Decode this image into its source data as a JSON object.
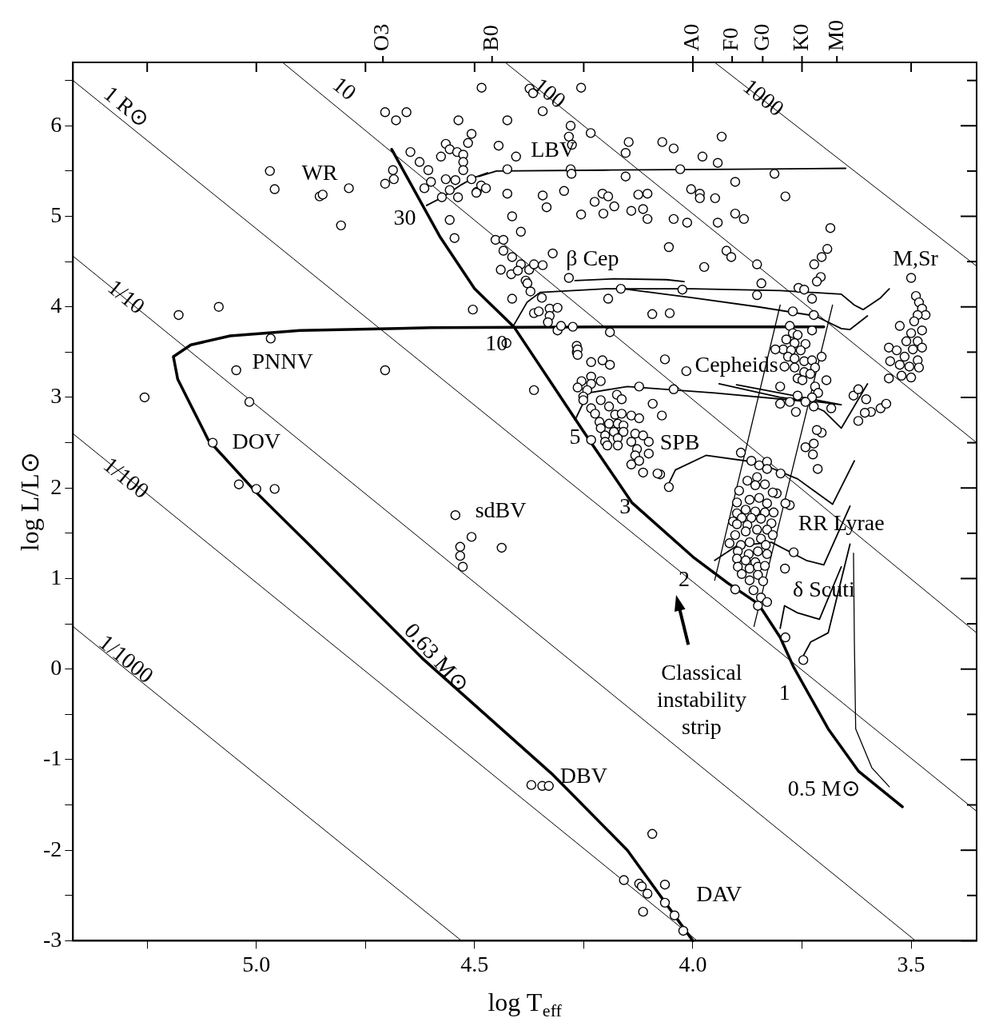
{
  "chart_data": {
    "type": "scatter",
    "xlabel": "log T$_{eff}$",
    "ylabel": "log L/L⊙",
    "xlim": [
      5.42,
      3.35
    ],
    "xticks": [
      {
        "value": 5.25,
        "label": null
      },
      {
        "value": 5,
        "label": "5.0"
      },
      {
        "value": 4.75,
        "label": null
      },
      {
        "value": 4.5,
        "label": "4.5"
      },
      {
        "value": 4.25,
        "label": null
      },
      {
        "value": 4,
        "label": "4.0"
      },
      {
        "value": 3.75,
        "label": null
      },
      {
        "value": 3.5,
        "label": "3.5"
      }
    ],
    "ylim": [
      -3,
      6.7
    ],
    "yticks": [
      -3,
      {
        "value": -2.5,
        "label": null
      },
      -2,
      {
        "value": -1.5,
        "label": null
      },
      -1,
      {
        "value": -0.5,
        "label": null
      },
      0,
      {
        "value": 0.5,
        "label": null
      },
      1,
      {
        "value": 1.5,
        "label": null
      },
      2,
      {
        "value": 2.5,
        "label": null
      },
      3,
      {
        "value": 3.5,
        "label": null
      },
      4,
      {
        "value": 4.5,
        "label": null
      },
      5,
      {
        "value": 5.5,
        "label": null
      },
      6,
      {
        "value": 6.5,
        "label": null
      }
    ],
    "series": [
      {
        "color": "#000000",
        "marker": "circle",
        "x": [
          4.705,
          4.68,
          4.656,
          4.537,
          4.507,
          4.515,
          4.566,
          4.557,
          4.54,
          4.526,
          4.577,
          4.526,
          4.526,
          4.647,
          4.626,
          4.606,
          4.6,
          4.615,
          4.566,
          4.544,
          4.507,
          4.557,
          4.575,
          4.538,
          4.495,
          4.687,
          4.685,
          4.705,
          4.557,
          4.546,
          4.484,
          4.969,
          4.958,
          4.855,
          4.848,
          4.788,
          4.806,
          5.086,
          5.178,
          4.967,
          5.046,
          4.705,
          5.256,
          5.016,
          4.504,
          5.1,
          5.04,
          5.0,
          4.958,
          4.544,
          4.507,
          4.533,
          4.533,
          4.527,
          4.438,
          4.37,
          4.345,
          4.33,
          4.158,
          4.123,
          4.117,
          4.104,
          4.114,
          4.064,
          4.064,
          4.042,
          4.022,
          4.093,
          4.055,
          4.075,
          3.903,
          3.788,
          3.747,
          3.769,
          3.789,
          3.714,
          3.725,
          3.742,
          3.705,
          3.778,
          3.808,
          4.374,
          4.366,
          4.256,
          4.344,
          4.425,
          4.28,
          4.284,
          4.277,
          4.234,
          4.445,
          4.405,
          4.425,
          4.28,
          4.278,
          4.147,
          4.154,
          4.154,
          4.07,
          4.044,
          4.029,
          3.978,
          3.943,
          3.934,
          3.813,
          4.485,
          4.474,
          4.496,
          4.425,
          4.344,
          4.335,
          4.295,
          4.414,
          4.394,
          4.256,
          4.225,
          4.207,
          4.194,
          4.18,
          4.205,
          4.141,
          4.125,
          4.114,
          4.104,
          4.104,
          4.044,
          4.013,
          4.004,
          3.984,
          3.984,
          3.949,
          3.943,
          3.903,
          3.903,
          3.883,
          3.788,
          3.685,
          4.055,
          3.923,
          3.912,
          3.853,
          3.974,
          3.692,
          3.705,
          3.722,
          3.707,
          3.716,
          3.843,
          3.758,
          3.745,
          3.727,
          3.853,
          4.024,
          4.165,
          4.194,
          4.093,
          4.053,
          3.771,
          3.723,
          3.727,
          3.5,
          4.452,
          4.434,
          4.434,
          4.414,
          4.394,
          4.375,
          4.364,
          4.344,
          4.321,
          4.284,
          4.44,
          4.416,
          4.401,
          4.383,
          4.379,
          4.372,
          4.346,
          4.414,
          4.328,
          4.31,
          4.364,
          4.353,
          4.328,
          4.332,
          4.31,
          4.275,
          4.302,
          4.19,
          4.427,
          4.266,
          4.266,
          4.233,
          4.207,
          4.19,
          4.064,
          4.364,
          4.015,
          4.264,
          4.264,
          4.123,
          4.044,
          4.092,
          4.071,
          4.255,
          4.233,
          4.211,
          4.264,
          4.233,
          4.242,
          4.251,
          4.251,
          4.211,
          4.233,
          4.224,
          4.192,
          4.174,
          4.163,
          4.178,
          4.163,
          4.141,
          4.123,
          4.214,
          4.192,
          4.172,
          4.159,
          4.211,
          4.181,
          4.159,
          4.132,
          4.114,
          4.201,
          4.172,
          4.233,
          4.201,
          4.141,
          4.101,
          4.196,
          4.172,
          4.128,
          4.132,
          4.101,
          4.141,
          4.123,
          4.114,
          4.081,
          3.778,
          3.771,
          3.76,
          3.786,
          3.767,
          3.742,
          3.793,
          3.811,
          3.775,
          3.753,
          3.782,
          3.767,
          3.745,
          3.727,
          3.705,
          3.79,
          3.767,
          3.745,
          3.72,
          3.731,
          3.76,
          3.749,
          3.694,
          3.8,
          3.72,
          3.713,
          3.76,
          3.727,
          3.8,
          3.778,
          3.742,
          3.723,
          3.683,
          3.764,
          3.716,
          3.632,
          3.621,
          3.603,
          3.592,
          3.606,
          3.621,
          3.57,
          3.557,
          3.489,
          3.482,
          3.475,
          3.467,
          3.485,
          3.493,
          3.475,
          3.526,
          3.5,
          3.511,
          3.485,
          3.551,
          3.533,
          3.496,
          3.475,
          3.515,
          3.485,
          3.548,
          3.526,
          3.504,
          3.482,
          3.551,
          3.522,
          3.5,
          3.89,
          3.866,
          3.848,
          3.83,
          3.83,
          3.799,
          3.875,
          3.853,
          3.835,
          3.857,
          3.817,
          3.894,
          3.87,
          3.848,
          3.83,
          3.899,
          3.788,
          3.879,
          3.857,
          3.835,
          3.815,
          3.899,
          3.888,
          3.866,
          3.844,
          3.82,
          3.908,
          3.899,
          3.875,
          3.853,
          3.83,
          3.817,
          3.903,
          3.879,
          3.844,
          3.916,
          3.89,
          3.87,
          3.833,
          3.897,
          3.872,
          3.851,
          3.83,
          3.899,
          3.879,
          3.857,
          3.897,
          3.87,
          3.851,
          3.835,
          3.888,
          3.87,
          3.851,
          3.839,
          3.861,
          3.844,
          3.83,
          3.851,
          3.723
        ],
        "values": [
          6.15,
          6.06,
          6.15,
          6.06,
          5.91,
          5.81,
          5.8,
          5.74,
          5.71,
          5.68,
          5.66,
          5.6,
          5.51,
          5.71,
          5.6,
          5.51,
          5.38,
          5.31,
          5.41,
          5.4,
          5.41,
          5.29,
          5.21,
          5.21,
          5.27,
          5.51,
          5.41,
          5.36,
          4.96,
          4.76,
          6.42,
          5.5,
          5.3,
          5.22,
          5.24,
          5.31,
          4.9,
          4.0,
          3.91,
          3.65,
          3.3,
          3.3,
          3.0,
          2.95,
          3.97,
          2.5,
          2.04,
          1.99,
          1.99,
          1.7,
          1.46,
          1.35,
          1.25,
          1.13,
          1.34,
          -1.28,
          -1.29,
          -1.29,
          -2.33,
          -2.37,
          -2.4,
          -2.48,
          -2.68,
          -2.38,
          -2.58,
          -2.72,
          -2.89,
          -1.82,
          2.01,
          2.15,
          0.88,
          0.35,
          0.1,
          1.29,
          1.11,
          2.21,
          2.37,
          2.45,
          2.61,
          1.81,
          1.94,
          6.41,
          6.36,
          6.42,
          6.16,
          6.06,
          6.0,
          5.88,
          5.79,
          5.92,
          5.78,
          5.66,
          5.52,
          5.52,
          5.47,
          5.82,
          5.7,
          5.44,
          5.82,
          5.75,
          5.52,
          5.66,
          5.59,
          5.88,
          5.47,
          5.34,
          5.31,
          5.26,
          5.25,
          5.23,
          5.1,
          5.28,
          5.0,
          4.83,
          5.02,
          5.16,
          5.25,
          5.22,
          5.11,
          5.03,
          5.06,
          5.24,
          5.08,
          5.25,
          4.97,
          4.97,
          4.93,
          5.3,
          5.25,
          5.2,
          5.2,
          4.93,
          5.38,
          5.03,
          4.97,
          5.22,
          4.87,
          4.66,
          4.62,
          4.55,
          4.47,
          4.44,
          4.64,
          4.55,
          4.47,
          4.33,
          4.28,
          4.26,
          4.21,
          4.19,
          4.09,
          4.13,
          4.19,
          4.2,
          4.09,
          3.92,
          3.93,
          3.95,
          3.91,
          3.74,
          4.32,
          4.74,
          4.74,
          4.62,
          4.55,
          4.47,
          4.41,
          4.47,
          4.46,
          4.59,
          4.32,
          4.41,
          4.36,
          4.4,
          4.29,
          4.26,
          4.17,
          4.1,
          4.09,
          3.98,
          3.99,
          3.93,
          3.95,
          3.9,
          3.83,
          3.74,
          3.78,
          3.79,
          3.72,
          3.6,
          3.57,
          3.5,
          3.39,
          3.41,
          3.36,
          3.42,
          3.08,
          3.29,
          3.53,
          3.47,
          3.12,
          3.09,
          2.93,
          2.8,
          3.18,
          3.23,
          3.18,
          3.11,
          3.15,
          3.08,
          3.01,
          2.97,
          2.97,
          2.88,
          2.82,
          2.9,
          3.03,
          2.98,
          2.81,
          2.82,
          2.8,
          2.77,
          2.73,
          2.71,
          2.71,
          2.69,
          2.66,
          2.62,
          2.62,
          2.6,
          2.58,
          2.58,
          2.55,
          2.53,
          2.51,
          2.51,
          2.51,
          2.47,
          2.47,
          2.43,
          2.36,
          2.38,
          2.26,
          2.3,
          2.17,
          2.16,
          3.79,
          3.71,
          3.69,
          3.64,
          3.6,
          3.59,
          3.53,
          3.53,
          3.52,
          3.52,
          3.45,
          3.43,
          3.4,
          3.41,
          3.45,
          3.34,
          3.33,
          3.28,
          3.33,
          3.26,
          3.21,
          3.19,
          3.19,
          3.12,
          3.12,
          3.05,
          3.02,
          3.0,
          2.93,
          2.95,
          2.95,
          2.9,
          2.88,
          2.84,
          2.64,
          3.02,
          3.09,
          2.98,
          2.84,
          2.83,
          2.74,
          2.88,
          2.93,
          4.12,
          4.05,
          3.98,
          3.91,
          3.91,
          3.84,
          3.74,
          3.79,
          3.71,
          3.62,
          3.62,
          3.55,
          3.52,
          3.53,
          3.55,
          3.45,
          3.41,
          3.4,
          3.36,
          3.34,
          3.33,
          3.21,
          3.24,
          3.22,
          2.39,
          2.3,
          2.25,
          2.29,
          2.21,
          2.16,
          2.08,
          2.12,
          2.04,
          2.03,
          1.95,
          1.97,
          1.87,
          1.89,
          1.83,
          1.84,
          1.83,
          1.76,
          1.74,
          1.73,
          1.73,
          1.72,
          1.67,
          1.67,
          1.66,
          1.61,
          1.63,
          1.6,
          1.59,
          1.54,
          1.54,
          1.48,
          1.48,
          1.52,
          1.44,
          1.39,
          1.37,
          1.4,
          1.37,
          1.3,
          1.27,
          1.3,
          1.27,
          1.22,
          1.2,
          1.18,
          1.13,
          1.11,
          1.13,
          1.14,
          1.05,
          0.98,
          1.04,
          0.97,
          0.87,
          0.79,
          0.74,
          0.7,
          2.49
        ]
      },
      {
        "type": "line",
        "color": "#000000",
        "x": [
          5.42,
          4.53
        ],
        "values": [
          0.47,
          -3
        ]
      },
      {
        "type": "line",
        "color": "#000000",
        "x": [
          5.42,
          3.99
        ],
        "values": [
          2.6,
          -3
        ]
      },
      {
        "type": "line",
        "color": "#000000",
        "x": [
          5.42,
          3.49
        ],
        "values": [
          4.56,
          -3
        ]
      },
      {
        "type": "line",
        "color": "#000000",
        "x": [
          5.42,
          3.35
        ],
        "values": [
          6.5,
          -1.57
        ]
      },
      {
        "type": "line",
        "color": "#000000",
        "x": [
          4.94,
          3.35
        ],
        "values": [
          6.7,
          0.4
        ]
      },
      {
        "type": "line",
        "color": "#000000",
        "x": [
          4.43,
          3.35
        ],
        "values": [
          6.7,
          2.5
        ]
      },
      {
        "type": "line",
        "color": "#000000",
        "x": [
          3.95,
          3.35
        ],
        "values": [
          6.7,
          4.45
        ]
      },
      {
        "type": "line",
        "color": "#000000",
        "x": [
          4.69,
          4.58,
          4.5,
          4.41,
          4.33,
          4.25,
          4.14,
          4.0,
          3.92,
          3.85,
          3.8,
          3.77,
          3.69,
          3.62,
          3.52
        ],
        "values": [
          5.74,
          4.78,
          4.2,
          3.78,
          3.2,
          2.62,
          1.84,
          1.24,
          0.95,
          0.72,
          0.35,
          0.03,
          -0.66,
          -1.13,
          -1.52
        ]
      },
      {
        "type": "line",
        "color": "#000000",
        "x": [
          3.7,
          4.2,
          4.6,
          4.9,
          5.06,
          5.15,
          5.19,
          5.18,
          5.11,
          5.0,
          4.87,
          4.62,
          4.32,
          4.15,
          4.0
        ],
        "values": [
          3.78,
          3.78,
          3.77,
          3.74,
          3.68,
          3.58,
          3.45,
          3.2,
          2.53,
          1.95,
          1.33,
          0.12,
          -1.17,
          -2.0,
          -3.0
        ]
      },
      {
        "type": "line",
        "color": "#000000",
        "x": [
          4.61,
          4.57,
          4.53,
          4.5,
          4.47,
          4.49,
          4.45,
          4.2,
          3.9,
          3.65
        ],
        "values": [
          5.12,
          5.22,
          5.35,
          5.43,
          5.48,
          5.44,
          5.5,
          5.51,
          5.52,
          5.53
        ]
      },
      {
        "type": "line",
        "color": "#000000",
        "x": [
          4.41,
          4.38,
          4.35,
          4.2,
          4.0,
          3.8,
          3.66,
          3.63,
          3.61,
          3.57,
          3.55
        ],
        "values": [
          3.8,
          4.05,
          4.16,
          4.2,
          4.2,
          4.18,
          4.14,
          4.02,
          3.97,
          4.1,
          4.2
        ]
      },
      {
        "type": "line",
        "color": "#000000",
        "x": [
          4.16,
          4.0,
          3.85,
          3.72,
          3.66,
          3.64,
          3.6
        ],
        "values": [
          4.2,
          4.1,
          4.0,
          3.9,
          3.76,
          3.75,
          3.9
        ]
      },
      {
        "type": "line",
        "color": "#000000",
        "x": [
          4.27,
          4.18,
          4.06,
          4.02
        ],
        "values": [
          4.29,
          4.31,
          4.3,
          4.28
        ]
      },
      {
        "type": "line",
        "color": "#000000",
        "x": [
          4.27,
          4.24,
          4.15,
          3.95,
          3.75,
          3.7,
          3.66,
          3.6
        ],
        "values": [
          2.75,
          3.05,
          3.12,
          3.05,
          2.96,
          2.85,
          2.66,
          3.15
        ]
      },
      {
        "type": "line",
        "color": "#000000",
        "x": [
          3.94,
          3.8,
          3.66,
          3.9
        ],
        "values": [
          3.15,
          3.0,
          2.92,
          3.14
        ]
      },
      {
        "type": "line",
        "color": "#000000",
        "x": [
          4.06,
          4.04,
          3.97,
          3.85,
          3.76,
          3.68,
          3.63
        ],
        "values": [
          2.0,
          2.2,
          2.36,
          2.28,
          2.1,
          1.82,
          2.3
        ]
      },
      {
        "type": "line",
        "color": "#000000",
        "x": [
          3.95,
          3.9,
          3.82,
          3.74,
          3.7,
          3.64
        ],
        "values": [
          1.2,
          1.36,
          1.4,
          1.2,
          1.15,
          1.8
        ]
      },
      {
        "type": "line",
        "color": "#000000",
        "x": [
          3.8,
          3.79,
          3.76,
          3.71,
          3.66
        ],
        "values": [
          0.45,
          0.7,
          0.62,
          0.55,
          1.13
        ]
      },
      {
        "type": "line",
        "color": "#000000",
        "x": [
          3.75,
          3.73,
          3.69,
          3.64
        ],
        "values": [
          0.12,
          0.3,
          0.4,
          1.38
        ]
      },
      {
        "type": "line",
        "color": "#000000",
        "x": [
          3.632,
          3.63,
          3.627,
          3.59,
          3.55
        ],
        "values": [
          1.28,
          0.3,
          -0.66,
          -1.09,
          -1.3
        ]
      },
      {
        "type": "line",
        "color": "#000000",
        "x": [
          3.95,
          3.8
        ],
        "values": [
          0.98,
          4.02
        ]
      },
      {
        "type": "line",
        "color": "#000000",
        "x": [
          3.86,
          3.68
        ],
        "values": [
          0.47,
          4.02
        ]
      }
    ],
    "annotations": [
      "1/1000",
      {
        "text": "1/100",
        "x": 5.3,
        "y": 2.1
      },
      {
        "text": "1/10",
        "x": 5.3,
        "y": 4.1
      },
      "1 R⊙",
      "10",
      {
        "text": "100",
        "x": 4.33,
        "y": 6.35
      },
      {
        "text": "1000",
        "x": 3.84,
        "y": 6.3
      },
      "0.63 M⊙",
      "Classical\ninstability\nstrip",
      "WR",
      "LBV",
      "β Cep",
      "M,Sr",
      "PNNV",
      "Cepheids",
      "DOV",
      "SPB",
      "sdBV",
      {
        "text": "RR Lyrae",
        "x": 3.66,
        "y": 1.6
      },
      "δ Scuti",
      "DBV",
      "DAV",
      "30",
      "10",
      "5",
      "3",
      {
        "text": "2",
        "x": 4.02,
        "y": 0.98
      },
      "1",
      "0.5 M⊙",
      "O3",
      "B0",
      "A0",
      "F0",
      "G0",
      "K0",
      "M0"
    ]
  }
}
